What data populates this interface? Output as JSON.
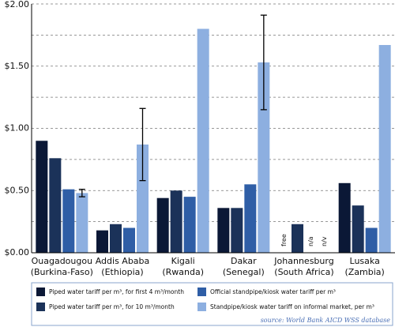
{
  "chart_data": {
    "type": "bar",
    "categories": [
      [
        "Ouagadougou",
        "(Burkina-Faso)"
      ],
      [
        "Addis Ababa",
        "(Ethiopia)"
      ],
      [
        "Kigali",
        "(Rwanda)"
      ],
      [
        "Dakar",
        "(Senegal)"
      ],
      [
        "Johannesburg",
        "(South Africa)"
      ],
      [
        "Lusaka",
        "(Zambia)"
      ]
    ],
    "series": [
      {
        "name": "Piped water tariff per m³, for first 4 m³/month",
        "color": "#0b1836",
        "values": [
          0.9,
          0.18,
          0.44,
          0.36,
          null,
          0.56
        ],
        "value_labels": [
          null,
          null,
          null,
          null,
          "free",
          null
        ]
      },
      {
        "name": "Piped water tariff per m³, for 10 m³/month",
        "color": "#1b3259",
        "values": [
          0.76,
          0.23,
          0.5,
          0.36,
          0.23,
          0.38
        ]
      },
      {
        "name": "Official standpipe/kiosk water tariff per m³",
        "color": "#2f5ea6",
        "values": [
          0.51,
          0.2,
          0.45,
          0.55,
          null,
          0.2
        ],
        "value_labels": [
          null,
          null,
          null,
          null,
          "n/a",
          null
        ]
      },
      {
        "name": "Standpipe/kiosk water tariff on informal market, per m³",
        "color": "#8dafe0",
        "values": [
          0.48,
          0.87,
          1.8,
          1.53,
          null,
          1.67
        ],
        "value_labels": [
          null,
          null,
          null,
          null,
          "n/v",
          null
        ],
        "errors": [
          0.03,
          0.29,
          null,
          0.38,
          null,
          null
        ]
      }
    ],
    "ylim": [
      0,
      2
    ],
    "yticks": [
      {
        "value": 0,
        "label": "$0.00"
      },
      {
        "value": 0.5,
        "label": "$0.50"
      },
      {
        "value": 1,
        "label": "$1.00"
      },
      {
        "value": 1.5,
        "label": "$1.50"
      },
      {
        "value": 2,
        "label": "$2.00"
      }
    ],
    "minor_yticks": [
      0.25,
      0.75,
      1.25,
      1.75
    ],
    "grid": true,
    "source": "source: World Bank AICD WSS database"
  }
}
